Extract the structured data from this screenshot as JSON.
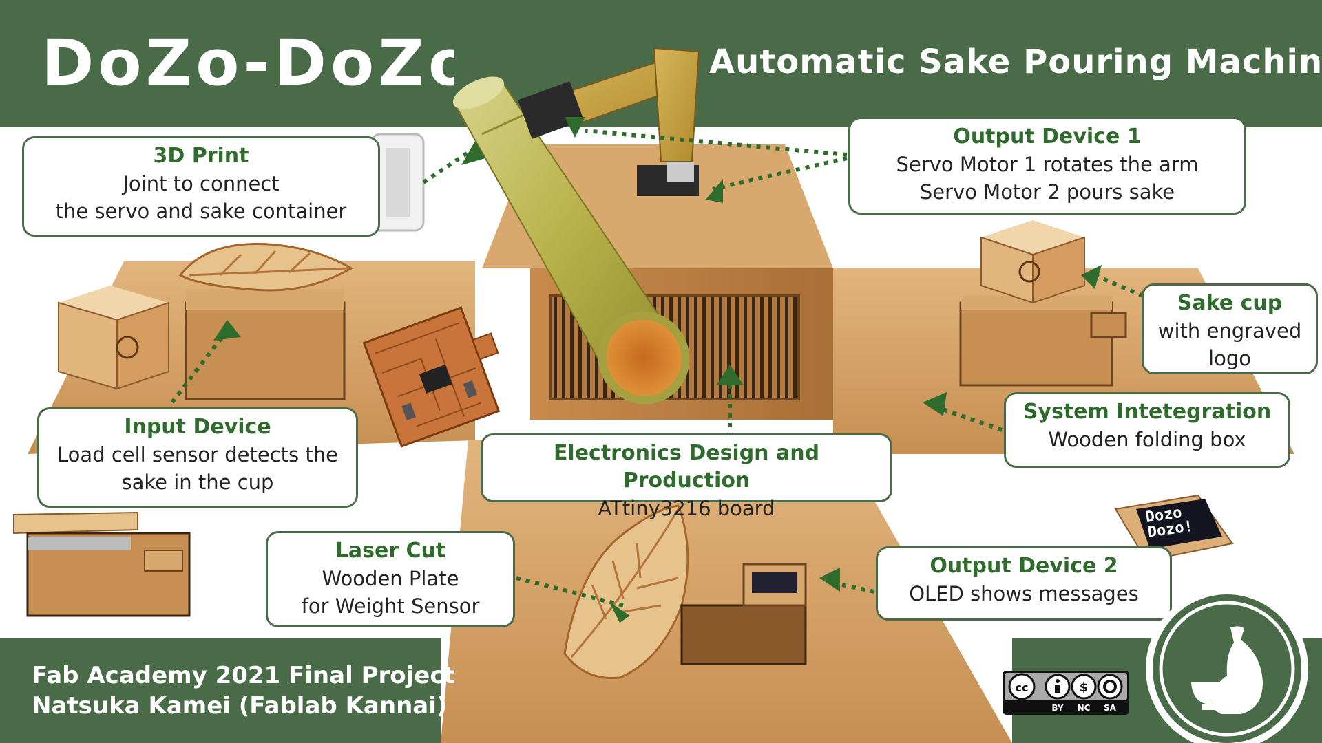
{
  "header": {
    "logo_text": "DoZo-DoZo",
    "subtitle": "Automatic Sake Pouring Machine"
  },
  "footer": {
    "line1": "Fab Academy 2021 Final Project",
    "line2": "Natsuka Kamei (Fablab Kannai)"
  },
  "callouts": {
    "print3d": {
      "title": "3D Print",
      "lines": [
        "Joint to connect",
        "the servo and sake container"
      ]
    },
    "output1": {
      "title": "Output Device 1",
      "lines": [
        "Servo Motor 1 rotates the arm",
        "Servo Motor 2 pours sake"
      ]
    },
    "sakecup": {
      "title": "Sake cup",
      "lines": [
        "with engraved",
        "logo"
      ]
    },
    "system": {
      "title": "System Intetegration",
      "lines": [
        "Wooden folding box"
      ]
    },
    "input": {
      "title": "Input Device",
      "lines": [
        "Load cell sensor detects the",
        "sake in the cup"
      ]
    },
    "electronics": {
      "title": "Electronics Design and Production",
      "lines": [
        "ATtiny3216 board"
      ]
    },
    "laser": {
      "title": "Laser Cut",
      "lines": [
        "Wooden Plate",
        "for Weight Sensor"
      ]
    },
    "output2": {
      "title": "Output Device 2",
      "lines": [
        "OLED shows messages"
      ]
    }
  },
  "oled": {
    "line1": "Dozo",
    "line2": "Dozo!"
  },
  "license": {
    "cc": "cc",
    "by": "BY",
    "nc": "NC",
    "sa": "SA"
  },
  "colors": {
    "brand_green": "#4a6b48",
    "title_green": "#2f6b2c",
    "wood": "#d9a66a",
    "bamboo": "#c7b44a"
  }
}
